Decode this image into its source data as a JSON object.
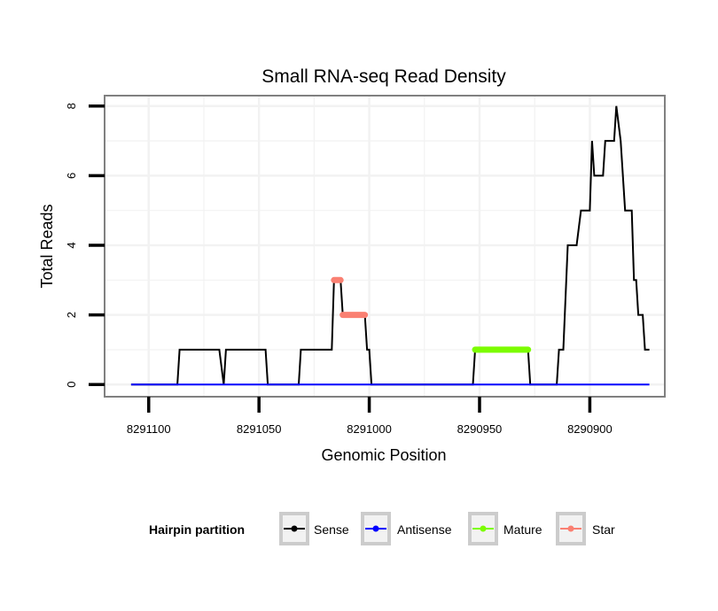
{
  "chart_data": {
    "type": "line",
    "title": "Small RNA-seq Read Density",
    "xlabel": "Genomic Position",
    "ylabel": "Total Reads",
    "xlim": [
      8291120,
      8290866
    ],
    "ylim": [
      -0.35,
      8.3
    ],
    "x_reversed": true,
    "grid": true,
    "x_ticks": [
      8291100,
      8291050,
      8291000,
      8290950,
      8290900
    ],
    "x_tick_labels": [
      "8291100",
      "8291050",
      "8291000",
      "8290950",
      "8290900"
    ],
    "y_ticks": [
      0,
      2,
      4,
      6,
      8
    ],
    "y_tick_labels": [
      "0",
      "2",
      "4",
      "6",
      "8"
    ],
    "series": [
      {
        "name": "Sense",
        "color": "#000000",
        "points": [
          [
            8291108,
            0
          ],
          [
            8291087,
            0
          ],
          [
            8291086,
            1
          ],
          [
            8291068,
            1
          ],
          [
            8291066,
            0
          ],
          [
            8291065,
            1
          ],
          [
            8291047,
            1
          ],
          [
            8291046,
            0
          ],
          [
            8291032,
            0
          ],
          [
            8291031,
            1
          ],
          [
            8291017,
            1
          ],
          [
            8291016,
            3
          ],
          [
            8291013,
            3
          ],
          [
            8291012,
            2
          ],
          [
            8291002,
            2
          ],
          [
            8291001,
            1
          ],
          [
            8291000,
            1
          ],
          [
            8290999,
            0
          ],
          [
            8290953,
            0
          ],
          [
            8290952,
            1
          ],
          [
            8290928,
            1
          ],
          [
            8290927,
            0
          ],
          [
            8290915,
            0
          ],
          [
            8290914,
            1
          ],
          [
            8290912,
            1
          ],
          [
            8290910,
            4
          ],
          [
            8290906,
            4
          ],
          [
            8290904,
            5
          ],
          [
            8290900,
            5
          ],
          [
            8290899,
            7
          ],
          [
            8290898,
            6
          ],
          [
            8290894,
            6
          ],
          [
            8290893,
            7
          ],
          [
            8290889,
            7
          ],
          [
            8290888,
            8
          ],
          [
            8290886,
            7
          ],
          [
            8290884,
            5
          ],
          [
            8290881,
            5
          ],
          [
            8290880,
            3
          ],
          [
            8290879,
            3
          ],
          [
            8290878,
            2
          ],
          [
            8290876,
            2
          ],
          [
            8290875,
            1
          ],
          [
            8290873,
            1
          ]
        ]
      },
      {
        "name": "Antisense",
        "color": "#0000ff",
        "points": [
          [
            8291108,
            0
          ],
          [
            8290873,
            0
          ]
        ]
      },
      {
        "name": "Mature",
        "color": "#7cfc00",
        "points": [
          [
            8290952,
            1
          ],
          [
            8290928,
            1
          ]
        ]
      },
      {
        "name": "Star",
        "color": "#fa8072",
        "segments": [
          [
            [
              8291016,
              3
            ],
            [
              8291013,
              3
            ]
          ],
          [
            [
              8291012,
              2
            ],
            [
              8291002,
              2
            ]
          ]
        ]
      }
    ],
    "legend": {
      "title": "Hairpin partition",
      "position": "bottom",
      "entries": [
        "Sense",
        "Antisense",
        "Mature",
        "Star"
      ]
    }
  }
}
